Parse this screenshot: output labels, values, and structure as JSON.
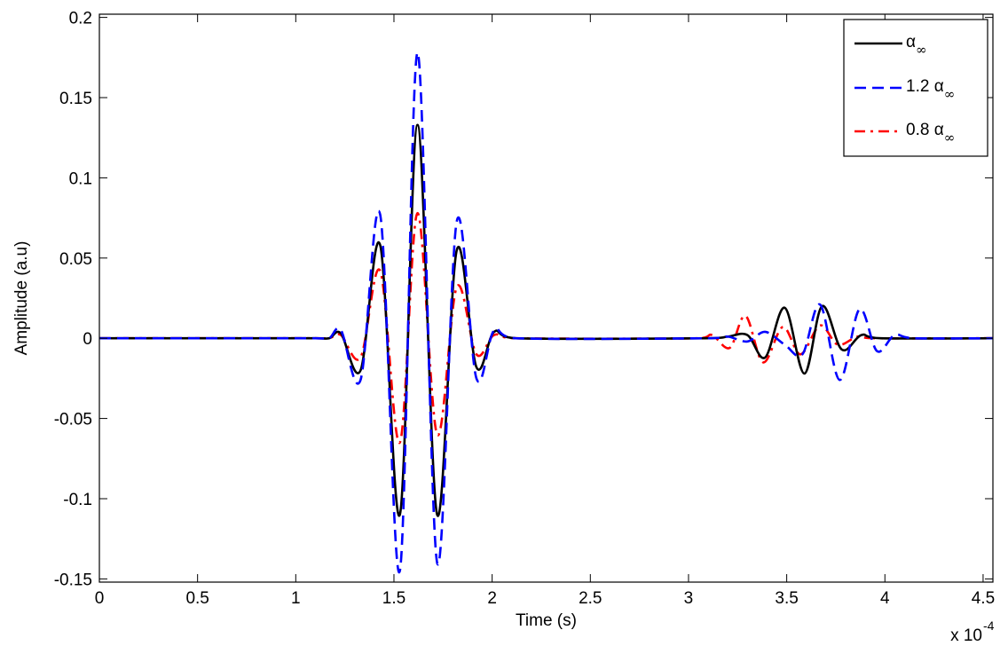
{
  "chart_data": {
    "type": "line",
    "title": "",
    "xlabel": "Time (s)",
    "ylabel": "Amplitude (a.u)",
    "x_multiplier_base": "x 10",
    "x_multiplier_exp": "-4",
    "xlim": [
      0,
      4.55
    ],
    "ylim": [
      -0.152,
      0.202
    ],
    "x_ticks": [
      0,
      0.5,
      1,
      1.5,
      2,
      2.5,
      3,
      3.5,
      4,
      4.5
    ],
    "x_tick_labels": [
      "0",
      "0.5",
      "1",
      "1.5",
      "2",
      "2.5",
      "3",
      "3.5",
      "4",
      "4.5"
    ],
    "y_ticks": [
      -0.15,
      -0.1,
      -0.05,
      0,
      0.05,
      0.1,
      0.15,
      0.2
    ],
    "y_tick_labels": [
      "-0.15",
      "-0.1",
      "-0.05",
      "0",
      "0.05",
      "0.1",
      "0.15",
      "0.2"
    ],
    "grid": false,
    "legend_position": "top-right",
    "series": [
      {
        "name": "α∞",
        "legend_main": "α",
        "legend_sub": "∞",
        "color": "#000000",
        "dash": "solid",
        "points": [
          [
            0,
            0
          ],
          [
            1.1,
            0
          ],
          [
            1.17,
            0
          ],
          [
            1.23,
            0.003
          ],
          [
            1.33,
            -0.02
          ],
          [
            1.43,
            0.058
          ],
          [
            1.53,
            -0.11
          ],
          [
            1.62,
            0.133
          ],
          [
            1.72,
            -0.11
          ],
          [
            1.82,
            0.055
          ],
          [
            1.92,
            -0.018
          ],
          [
            2.01,
            0.004
          ],
          [
            2.12,
            0
          ],
          [
            3.1,
            0
          ],
          [
            3.2,
            0.001
          ],
          [
            3.3,
            0.002
          ],
          [
            3.39,
            -0.012
          ],
          [
            3.49,
            0.019
          ],
          [
            3.59,
            -0.022
          ],
          [
            3.68,
            0.02
          ],
          [
            3.78,
            -0.007
          ],
          [
            3.88,
            0.002
          ],
          [
            3.98,
            0
          ],
          [
            4.55,
            0
          ]
        ]
      },
      {
        "name": "1.2 α∞",
        "legend_main": "1.2 α",
        "legend_sub": "∞",
        "color": "#0000ff",
        "dash": "dashed",
        "points": [
          [
            0,
            0
          ],
          [
            1.1,
            0
          ],
          [
            1.17,
            0
          ],
          [
            1.23,
            0.005
          ],
          [
            1.33,
            -0.026
          ],
          [
            1.43,
            0.077
          ],
          [
            1.53,
            -0.145
          ],
          [
            1.62,
            0.178
          ],
          [
            1.72,
            -0.14
          ],
          [
            1.82,
            0.073
          ],
          [
            1.92,
            -0.025
          ],
          [
            2.01,
            0.005
          ],
          [
            2.12,
            0
          ],
          [
            3.1,
            0
          ],
          [
            3.2,
            0.001
          ],
          [
            3.3,
            -0.002
          ],
          [
            3.39,
            0.004
          ],
          [
            3.49,
            -0.004
          ],
          [
            3.58,
            -0.01
          ],
          [
            3.67,
            0.021
          ],
          [
            3.77,
            -0.026
          ],
          [
            3.87,
            0.018
          ],
          [
            3.96,
            -0.008
          ],
          [
            4.05,
            0.002
          ],
          [
            4.15,
            0
          ],
          [
            4.55,
            0
          ]
        ]
      },
      {
        "name": "0.8 α∞",
        "legend_main": "0.8 α",
        "legend_sub": "∞",
        "color": "#ff0000",
        "dash": "dashdot",
        "points": [
          [
            0,
            0
          ],
          [
            1.1,
            0
          ],
          [
            1.17,
            0
          ],
          [
            1.23,
            0.002
          ],
          [
            1.33,
            -0.012
          ],
          [
            1.43,
            0.042
          ],
          [
            1.53,
            -0.065
          ],
          [
            1.62,
            0.078
          ],
          [
            1.72,
            -0.06
          ],
          [
            1.82,
            0.032
          ],
          [
            1.92,
            -0.01
          ],
          [
            2.01,
            0.002
          ],
          [
            2.12,
            0
          ],
          [
            3.05,
            0
          ],
          [
            3.12,
            0.002
          ],
          [
            3.21,
            -0.006
          ],
          [
            3.29,
            0.014
          ],
          [
            3.38,
            -0.015
          ],
          [
            3.48,
            0.007
          ],
          [
            3.57,
            -0.01
          ],
          [
            3.67,
            0.008
          ],
          [
            3.76,
            -0.004
          ],
          [
            3.86,
            0.001
          ],
          [
            3.95,
            0
          ],
          [
            4.55,
            0
          ]
        ]
      }
    ]
  }
}
